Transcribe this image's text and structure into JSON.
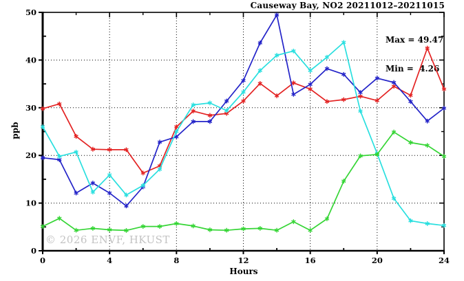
{
  "title": "Causeway Bay, NO2 20211012–20211015",
  "annotation": {
    "max_label": "Max = 49.47",
    "min_label": "Min =  4.26"
  },
  "watermark": "© 2026 ENVF, HKUST",
  "chart_data": {
    "type": "line",
    "title": "Causeway Bay, NO2 20211012–20211015",
    "xlabel": "Hours",
    "ylabel": "ppb",
    "xlim": [
      0,
      24
    ],
    "ylim": [
      0,
      50
    ],
    "xticks": [
      0,
      4,
      8,
      12,
      16,
      20,
      24
    ],
    "yticks": [
      0,
      10,
      20,
      30,
      40,
      50
    ],
    "x_minor_step": 2,
    "y_minor_step": 5,
    "grid": "dotted",
    "marker": "asterisk",
    "max": 49.47,
    "min": 4.26,
    "x": [
      0,
      1,
      2,
      3,
      4,
      5,
      6,
      7,
      8,
      9,
      10,
      11,
      12,
      13,
      14,
      15,
      16,
      17,
      18,
      19,
      20,
      21,
      22,
      23,
      24
    ],
    "series": [
      {
        "name": "red-line",
        "color": "#e32222",
        "values": [
          29.8,
          30.8,
          24.0,
          21.3,
          21.2,
          21.2,
          16.3,
          17.8,
          26.0,
          29.3,
          28.4,
          28.8,
          31.4,
          35.1,
          32.5,
          35.2,
          33.9,
          31.3,
          31.7,
          32.4,
          31.5,
          34.5,
          32.6,
          42.5,
          33.9
        ]
      },
      {
        "name": "blue-line",
        "color": "#2323c8",
        "values": [
          19.5,
          19.1,
          12.1,
          14.2,
          12.1,
          9.4,
          13.4,
          22.8,
          23.9,
          27.1,
          27.1,
          31.4,
          35.7,
          43.6,
          49.47,
          32.8,
          34.9,
          38.2,
          37.0,
          33.2,
          36.2,
          35.3,
          31.3,
          27.2,
          29.9
        ]
      },
      {
        "name": "cyan-line",
        "color": "#29dfdf",
        "values": [
          26.0,
          19.8,
          20.7,
          12.3,
          15.9,
          11.7,
          13.7,
          17.1,
          25.0,
          30.6,
          31.0,
          29.4,
          33.3,
          37.8,
          41.0,
          41.9,
          37.8,
          40.6,
          43.7,
          29.3,
          20.4,
          11.0,
          6.3,
          5.7,
          5.3
        ]
      },
      {
        "name": "green-line",
        "color": "#35d535",
        "values": [
          5.1,
          6.8,
          4.3,
          4.7,
          4.4,
          4.26,
          5.1,
          5.1,
          5.7,
          5.2,
          4.4,
          4.3,
          4.6,
          4.7,
          4.3,
          6.1,
          4.3,
          6.7,
          14.6,
          19.9,
          20.2,
          24.9,
          22.7,
          22.1,
          19.8
        ]
      }
    ]
  }
}
